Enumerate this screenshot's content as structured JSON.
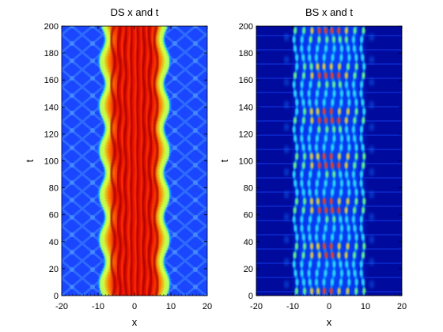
{
  "chart_data": [
    {
      "type": "heatmap",
      "title": "DS x and t",
      "xlabel": "x",
      "ylabel": "t",
      "xlim": [
        -20,
        20
      ],
      "ylim": [
        0,
        200
      ],
      "xticks": [
        -20,
        -10,
        0,
        10,
        20
      ],
      "yticks": [
        0,
        20,
        40,
        60,
        80,
        100,
        120,
        140,
        160,
        180,
        200
      ],
      "colormap": "jet",
      "grid": false,
      "features": {
        "core_halfwidth": 9.5,
        "stripes": 8,
        "edge_oscillation_period_t": 33,
        "edge_oscillation_amplitude_x": 0.9
      }
    },
    {
      "type": "heatmap",
      "title": "BS x and t",
      "xlabel": "x",
      "ylabel": "t",
      "xlim": [
        -20,
        20
      ],
      "ylim": [
        0,
        200
      ],
      "xticks": [
        -20,
        -10,
        0,
        10,
        20
      ],
      "yticks": [
        0,
        20,
        40,
        60,
        80,
        100,
        120,
        140,
        160,
        180,
        200
      ],
      "colormap": "jet",
      "grid": false,
      "features": {
        "core_halfwidth": 9.5,
        "stripes": 8,
        "breathing_period_t": 33
      }
    }
  ]
}
